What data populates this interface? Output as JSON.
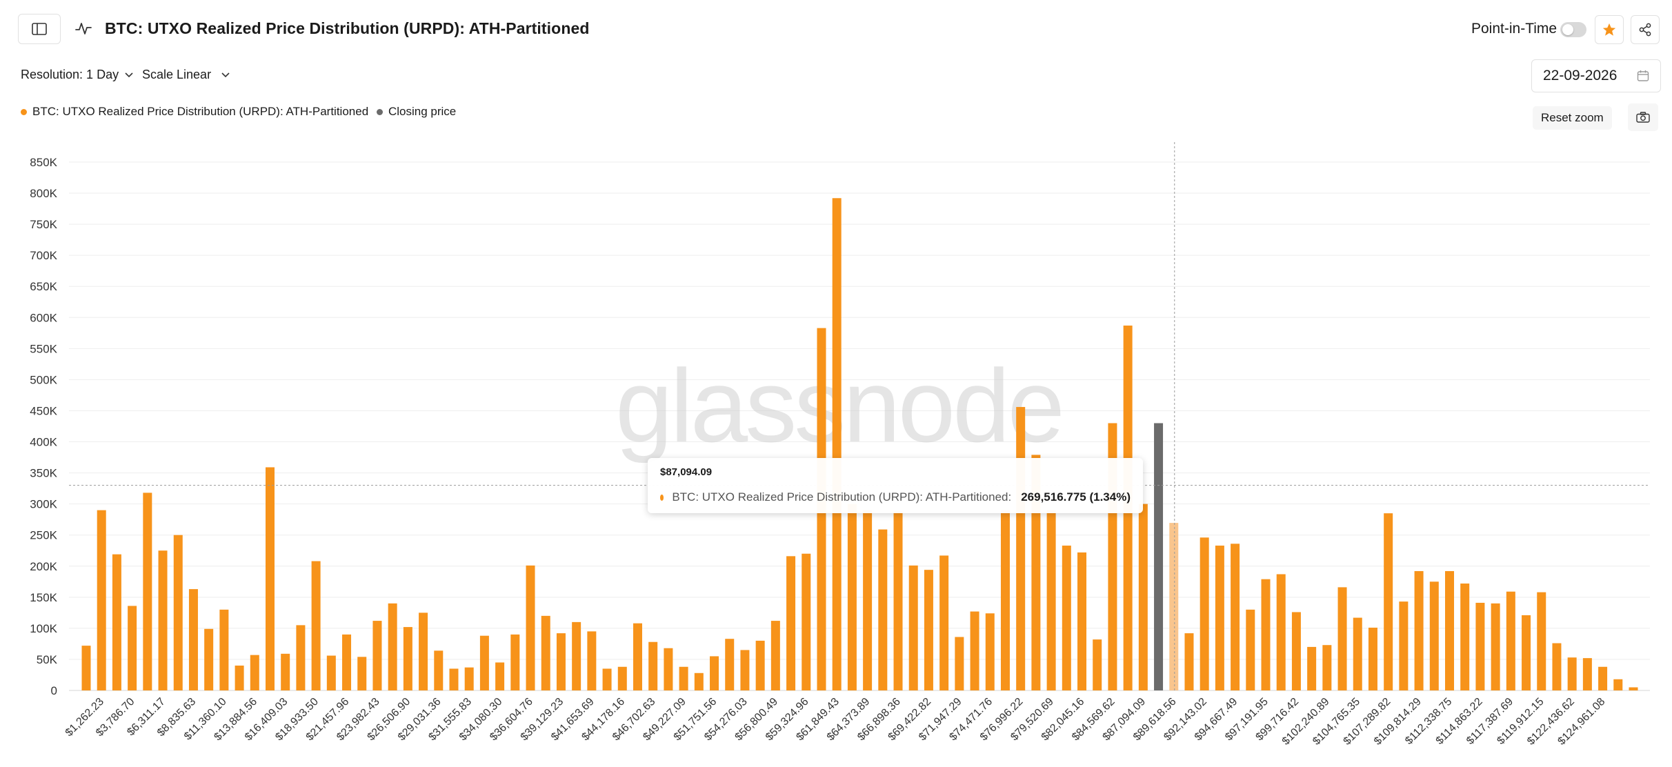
{
  "header": {
    "title": "BTC: UTXO Realized Price Distribution (URPD): ATH-Partitioned",
    "point_in_time_label": "Point-in-Time"
  },
  "toolbar": {
    "resolution_label": "Resolution: 1 Day",
    "scale_label": "Scale Linear",
    "date_value": "22-09-2026",
    "reset_zoom_label": "Reset zoom"
  },
  "legend": {
    "urpd_label": "BTC: UTXO Realized Price Distribution (URPD): ATH-Partitioned",
    "closing_label": "Closing price"
  },
  "watermark": "glassnode",
  "colors": {
    "bar": "#F7931A",
    "closing_bar": "#6b6b6b",
    "faded_bar": "#F9C58D",
    "star": "#F7931A"
  },
  "icons": [
    "sidebar-icon",
    "chart-line-icon",
    "star-icon",
    "share-icon",
    "chevron-down-icon",
    "calendar-icon",
    "camera-icon"
  ],
  "tooltip": {
    "date": "$87,094.09",
    "series_label": "BTC: UTXO Realized Price Distribution (URPD): ATH-Partitioned:",
    "value": "269,516.775 (1.34%)"
  },
  "chart_data": {
    "type": "bar",
    "title": "",
    "xlabel": "",
    "ylabel": "",
    "ylim": [
      0,
      850000
    ],
    "yticks": [
      0,
      50000,
      100000,
      150000,
      200000,
      250000,
      300000,
      350000,
      400000,
      450000,
      500000,
      550000,
      600000,
      650000,
      700000,
      750000,
      800000,
      850000
    ],
    "ytick_labels": [
      "0",
      "50K",
      "100K",
      "150K",
      "200K",
      "250K",
      "300K",
      "350K",
      "400K",
      "450K",
      "500K",
      "550K",
      "600K",
      "650K",
      "700K",
      "750K",
      "800K",
      "850K"
    ],
    "grid": true,
    "legend_position": "top-left",
    "xtick_labels": [
      "$1,262.23",
      "$3,786.70",
      "$6,311.17",
      "$8,835.63",
      "$11,360.10",
      "$13,884.56",
      "$16,409.03",
      "$18,933.50",
      "$21,457.96",
      "$23,982.43",
      "$26,506.90",
      "$29,031.36",
      "$31,555.83",
      "$34,080.30",
      "$36,604.76",
      "$39,129.23",
      "$41,653.69",
      "$44,178.16",
      "$46,702.63",
      "$49,227.09",
      "$51,751.56",
      "$54,276.03",
      "$56,800.49",
      "$59,324.96",
      "$61,849.43",
      "$64,373.89",
      "$66,898.36",
      "$69,422.82",
      "$71,947.29",
      "$74,471.76",
      "$76,996.22",
      "$79,520.69",
      "$82,045.16",
      "$84,569.62",
      "$87,094.09",
      "$89,618.56",
      "$92,143.02",
      "$94,667.49",
      "$97,191.95",
      "$99,716.42",
      "$102,240.89",
      "$104,765.35",
      "$107,289.82",
      "$109,814.29",
      "$112,338.75",
      "$114,863.22",
      "$117,387.69",
      "$119,912.15",
      "$122,436.62",
      "$124,961.08"
    ],
    "series": [
      {
        "name": "BTC: UTXO Realized Price Distribution (URPD): ATH-Partitioned",
        "values": [
          72000,
          290000,
          219000,
          136000,
          318000,
          225000,
          250000,
          163000,
          99000,
          130000,
          40000,
          57000,
          359000,
          59000,
          105000,
          208000,
          56000,
          90000,
          54000,
          112000,
          140000,
          102000,
          125000,
          64000,
          35000,
          37000,
          88000,
          45000,
          90000,
          201000,
          120000,
          92000,
          110000,
          95000,
          35000,
          38000,
          108000,
          78000,
          68000,
          38000,
          28000,
          55000,
          83000,
          65000,
          80000,
          112000,
          216000,
          220000,
          583000,
          792000,
          300000,
          290000,
          259000,
          288000,
          201000,
          194000,
          217000,
          86000,
          127000,
          124000,
          290000,
          456000,
          379000,
          290000,
          233000,
          222000,
          82000,
          430000,
          587000,
          300000,
          430000,
          269517,
          92000,
          246000,
          233000,
          236000,
          130000,
          179000,
          187000,
          126000,
          70000,
          73000,
          166000,
          117000,
          101000,
          285000,
          143000,
          192000,
          175000,
          192000,
          172000,
          141000,
          140000,
          159000,
          121000,
          158000,
          76000,
          53000,
          52000,
          38000,
          18000,
          5000
        ]
      }
    ],
    "closing_price_index": 70,
    "hover_index": 71,
    "crosshair_y": 330000
  }
}
